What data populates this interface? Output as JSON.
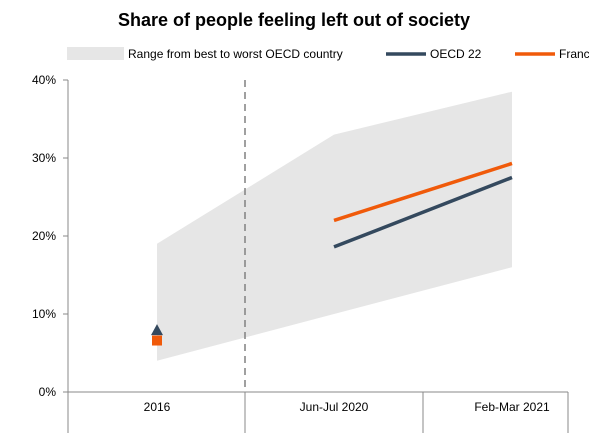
{
  "chart_data": {
    "type": "line",
    "title": "Share of people feeling left out of society",
    "categories": [
      "2016",
      "Jun-Jul 2020",
      "Feb-Mar 2021"
    ],
    "y_ticks": [
      "0%",
      "10%",
      "20%",
      "30%",
      "40%"
    ],
    "ylim": [
      0,
      40
    ],
    "grid": false,
    "legend_position": "top",
    "range_band": {
      "name": "Range from best to worst OECD country",
      "points": [
        {
          "x": "2016",
          "low": 4,
          "high": 19
        },
        {
          "x": "Jun-Jul 2020",
          "low": 10,
          "high": 33
        },
        {
          "x": "Feb-Mar 2021",
          "low": 16,
          "high": 38.5
        }
      ],
      "color": "#e6e6e6"
    },
    "series": [
      {
        "name": "OECD 22",
        "color": "#34495e",
        "marker_2016": "triangle",
        "values": [
          8,
          18.6,
          27.5
        ]
      },
      {
        "name": "France",
        "color": "#f05a0a",
        "marker_2016": "square",
        "values": [
          6.6,
          22,
          29.3
        ]
      }
    ],
    "divider_after_category": "2016",
    "divider_style": "dashed"
  }
}
